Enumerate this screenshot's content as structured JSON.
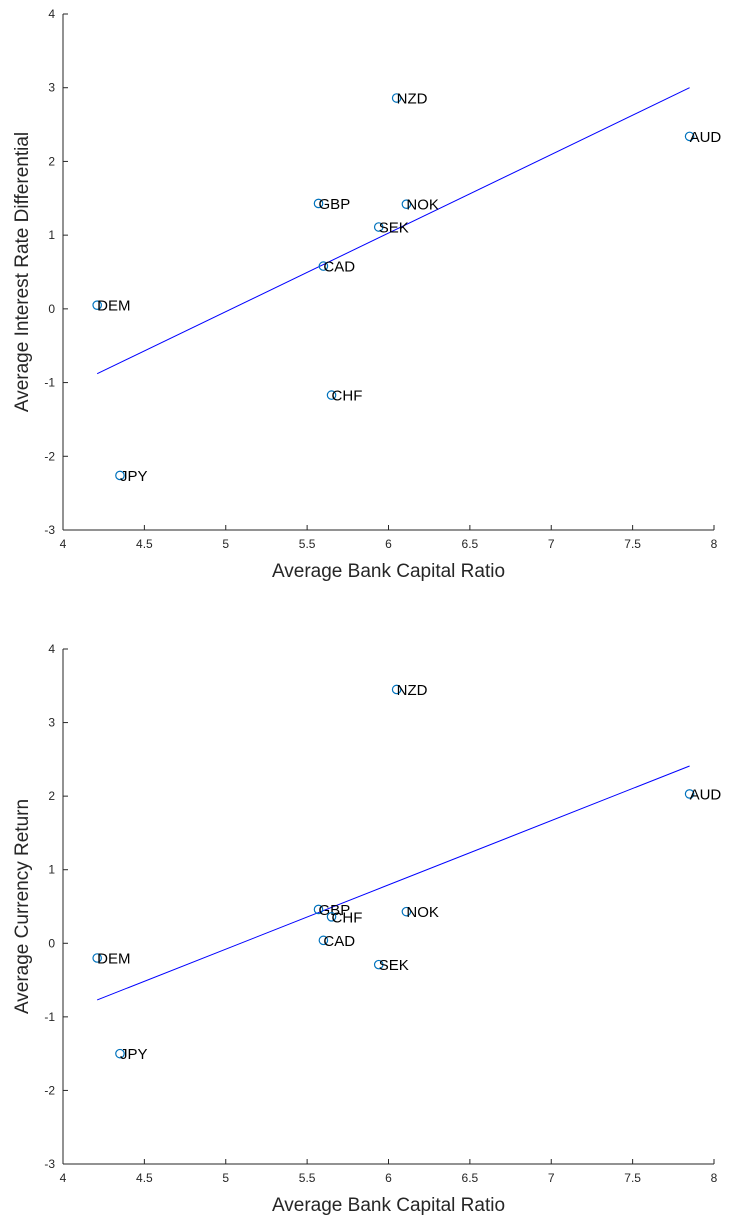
{
  "chart_data": [
    {
      "type": "scatter",
      "title": "",
      "xlabel": "Average Bank Capital Ratio",
      "ylabel": "Average Interest Rate Differential",
      "xlim": [
        4,
        8
      ],
      "ylim": [
        -3,
        4
      ],
      "xticks": [
        "4",
        "4.5",
        "5",
        "5.5",
        "6",
        "6.5",
        "7",
        "7.5",
        "8"
      ],
      "yticks": [
        "-3",
        "-2",
        "-1",
        "0",
        "1",
        "2",
        "3",
        "4"
      ],
      "grid": false,
      "marker_color": "#0072BD",
      "line_color": "#0000FF",
      "points": [
        {
          "label": "NZD",
          "x": 6.05,
          "y": 2.86
        },
        {
          "label": "AUD",
          "x": 7.85,
          "y": 2.34
        },
        {
          "label": "GBP",
          "x": 5.57,
          "y": 1.43
        },
        {
          "label": "NOK",
          "x": 6.11,
          "y": 1.42
        },
        {
          "label": "SEK",
          "x": 5.94,
          "y": 1.11
        },
        {
          "label": "CAD",
          "x": 5.6,
          "y": 0.58
        },
        {
          "label": "DEM",
          "x": 4.21,
          "y": 0.05
        },
        {
          "label": "CHF",
          "x": 5.65,
          "y": -1.17
        },
        {
          "label": "JPY",
          "x": 4.35,
          "y": -2.26
        }
      ],
      "fit_line": {
        "x": [
          4.21,
          7.85
        ],
        "y": [
          -0.88,
          3.0
        ]
      }
    },
    {
      "type": "scatter",
      "title": "",
      "xlabel": "Average Bank Capital Ratio",
      "ylabel": "Average Currency Return",
      "xlim": [
        4,
        8
      ],
      "ylim": [
        -3,
        4
      ],
      "xticks": [
        "4",
        "4.5",
        "5",
        "5.5",
        "6",
        "6.5",
        "7",
        "7.5",
        "8"
      ],
      "yticks": [
        "-3",
        "-2",
        "-1",
        "0",
        "1",
        "2",
        "3",
        "4"
      ],
      "grid": false,
      "marker_color": "#0072BD",
      "line_color": "#0000FF",
      "points": [
        {
          "label": "NZD",
          "x": 6.05,
          "y": 3.45
        },
        {
          "label": "AUD",
          "x": 7.85,
          "y": 2.03
        },
        {
          "label": "GBP",
          "x": 5.57,
          "y": 0.46
        },
        {
          "label": "CHF",
          "x": 5.65,
          "y": 0.36
        },
        {
          "label": "NOK",
          "x": 6.11,
          "y": 0.43
        },
        {
          "label": "CAD",
          "x": 5.6,
          "y": 0.04
        },
        {
          "label": "SEK",
          "x": 5.94,
          "y": -0.29
        },
        {
          "label": "DEM",
          "x": 4.21,
          "y": -0.2
        },
        {
          "label": "JPY",
          "x": 4.35,
          "y": -1.5
        }
      ],
      "fit_line": {
        "x": [
          4.21,
          7.85
        ],
        "y": [
          -0.77,
          2.41
        ]
      }
    }
  ]
}
